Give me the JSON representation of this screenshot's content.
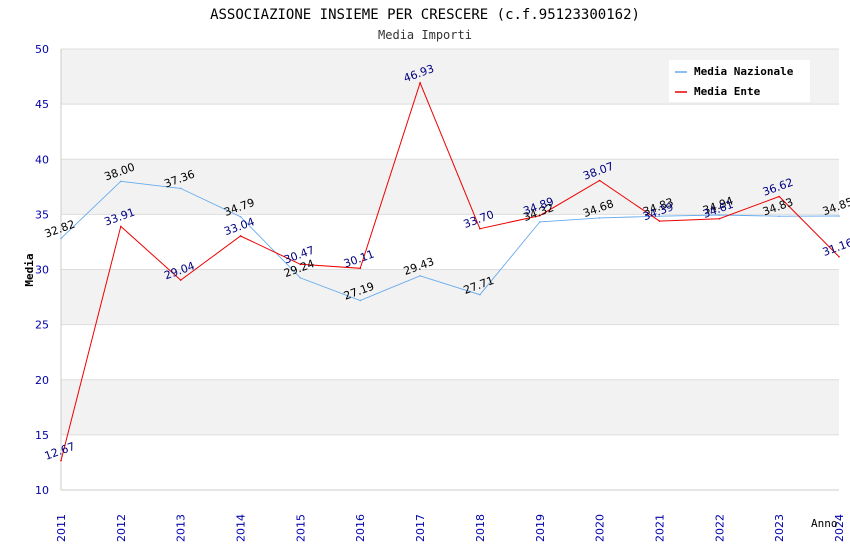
{
  "chart_data": {
    "type": "line",
    "title": "ASSOCIAZIONE INSIEME PER CRESCERE (c.f.95123300162)",
    "subtitle": "Media Importi",
    "xlabel": "Anno",
    "ylabel": "Media",
    "ylim": [
      10,
      50
    ],
    "yticks": [
      "10",
      "15",
      "20",
      "25",
      "30",
      "35",
      "40",
      "45",
      "50"
    ],
    "categories": [
      "2011",
      "2012",
      "2013",
      "2014",
      "2015",
      "2016",
      "2017",
      "2018",
      "2019",
      "2020",
      "2021",
      "2022",
      "2023",
      "2024"
    ],
    "legend_position": "top-right",
    "grid": true,
    "series": [
      {
        "name": "Media Nazionale",
        "color": "#66aaee",
        "label_color": "#000000",
        "values": [
          32.82,
          38.0,
          37.36,
          34.79,
          29.24,
          27.19,
          29.43,
          27.71,
          34.32,
          34.68,
          34.83,
          34.94,
          34.83,
          34.85
        ],
        "labels": [
          "32.82",
          "38.00",
          "37.36",
          "34.79",
          "29.24",
          "27.19",
          "29.43",
          "27.71",
          "34.32",
          "34.68",
          "34.83",
          "34.94",
          "34.83",
          "34.85"
        ]
      },
      {
        "name": "Media Ente",
        "color": "#ee0000",
        "label_color": "#000080",
        "values": [
          12.67,
          33.91,
          29.04,
          33.04,
          30.47,
          30.11,
          46.93,
          33.7,
          34.89,
          38.07,
          34.39,
          34.61,
          36.62,
          31.16
        ],
        "labels": [
          "12.67",
          "33.91",
          "29.04",
          "33.04",
          "30.47",
          "30.11",
          "46.93",
          "33.70",
          "34.89",
          "38.07",
          "34.39",
          "34.61",
          "36.62",
          "31.16"
        ]
      }
    ]
  }
}
